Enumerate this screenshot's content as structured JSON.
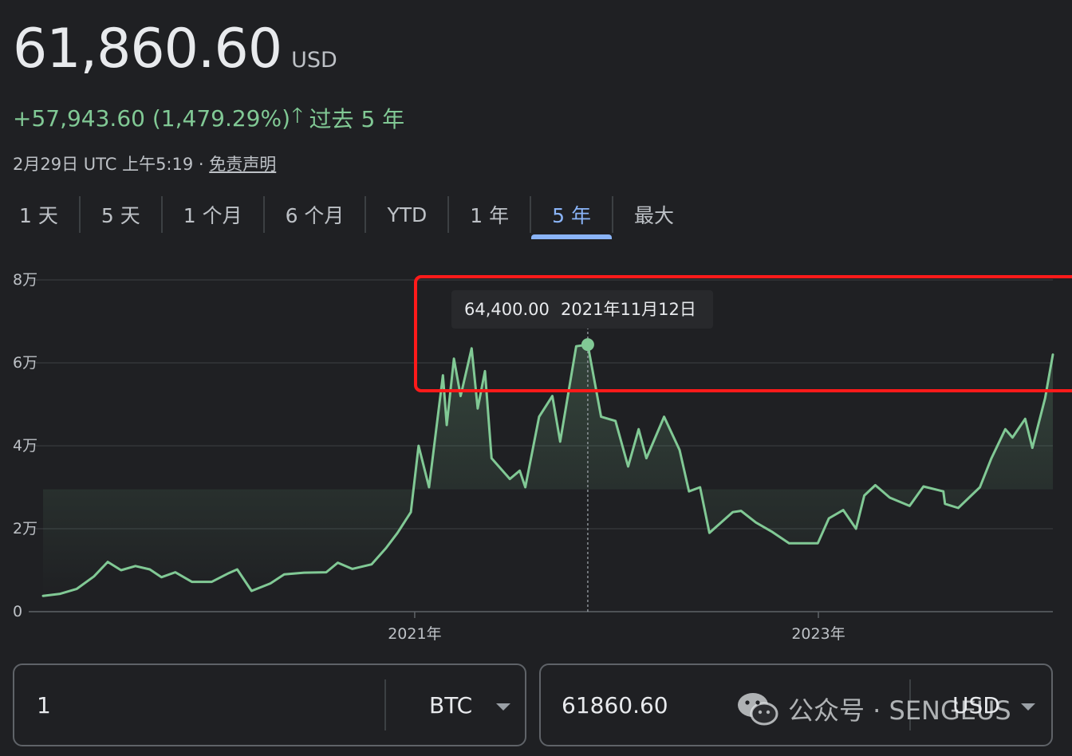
{
  "header": {
    "price": "61,860.60",
    "currency": "USD",
    "change": "+57,943.60 (1,479.29%)",
    "change_period": "过去 5 年",
    "timestamp": "2月29日 UTC 上午5:19 · ",
    "disclaimer": "免责声明"
  },
  "tabs": [
    "1 天",
    "5 天",
    "1 个月",
    "6 个月",
    "YTD",
    "1 年",
    "5 年",
    "最大"
  ],
  "active_tab_index": 6,
  "colors": {
    "line": "#81c995",
    "accent": "#8ab4f8",
    "highlight_box": "#ff1a1a"
  },
  "tooltip": {
    "value": "64,400.00",
    "date": "2021年11月12日"
  },
  "chart_data": {
    "type": "line",
    "y_tick_labels": [
      "0",
      "2万",
      "4万",
      "6万",
      "8万"
    ],
    "y_ticks": [
      0,
      20000,
      40000,
      60000,
      80000
    ],
    "ylim": [
      0,
      80000
    ],
    "x_tick_labels": [
      "2021年",
      "2023年"
    ],
    "x_ticks": [
      "2021-01-01",
      "2023-01-01"
    ],
    "xlim": [
      "2019-03-01",
      "2024-02-29"
    ],
    "grid": true,
    "series": [
      {
        "points": [
          [
            "2019-03-01",
            3800
          ],
          [
            "2019-04-01",
            4300
          ],
          [
            "2019-05-01",
            5500
          ],
          [
            "2019-06-01",
            8500
          ],
          [
            "2019-06-26",
            12000
          ],
          [
            "2019-07-20",
            10000
          ],
          [
            "2019-08-15",
            11000
          ],
          [
            "2019-09-10",
            10200
          ],
          [
            "2019-10-01",
            8300
          ],
          [
            "2019-10-26",
            9500
          ],
          [
            "2019-11-25",
            7200
          ],
          [
            "2019-12-31",
            7200
          ],
          [
            "2020-01-31",
            9300
          ],
          [
            "2020-02-15",
            10200
          ],
          [
            "2020-03-12",
            5000
          ],
          [
            "2020-04-15",
            6800
          ],
          [
            "2020-05-10",
            9000
          ],
          [
            "2020-06-15",
            9400
          ],
          [
            "2020-07-25",
            9500
          ],
          [
            "2020-08-15",
            11800
          ],
          [
            "2020-09-10",
            10300
          ],
          [
            "2020-10-15",
            11400
          ],
          [
            "2020-11-10",
            15300
          ],
          [
            "2020-12-01",
            19000
          ],
          [
            "2020-12-25",
            24000
          ],
          [
            "2021-01-08",
            40000
          ],
          [
            "2021-01-27",
            30000
          ],
          [
            "2021-02-21",
            57000
          ],
          [
            "2021-02-28",
            45000
          ],
          [
            "2021-03-13",
            61000
          ],
          [
            "2021-03-25",
            52000
          ],
          [
            "2021-04-14",
            63500
          ],
          [
            "2021-04-25",
            49000
          ],
          [
            "2021-05-08",
            58000
          ],
          [
            "2021-05-20",
            37000
          ],
          [
            "2021-06-22",
            32000
          ],
          [
            "2021-07-10",
            34000
          ],
          [
            "2021-07-20",
            30000
          ],
          [
            "2021-08-14",
            47000
          ],
          [
            "2021-09-07",
            52000
          ],
          [
            "2021-09-21",
            41000
          ],
          [
            "2021-10-20",
            64000
          ],
          [
            "2021-11-10",
            64400
          ],
          [
            "2021-12-04",
            47000
          ],
          [
            "2021-12-30",
            46000
          ],
          [
            "2022-01-22",
            35000
          ],
          [
            "2022-02-10",
            44000
          ],
          [
            "2022-02-24",
            37000
          ],
          [
            "2022-03-28",
            47000
          ],
          [
            "2022-04-25",
            39000
          ],
          [
            "2022-05-12",
            29000
          ],
          [
            "2022-06-01",
            30000
          ],
          [
            "2022-06-18",
            19000
          ],
          [
            "2022-07-30",
            24000
          ],
          [
            "2022-08-14",
            24300
          ],
          [
            "2022-09-10",
            21500
          ],
          [
            "2022-10-10",
            19200
          ],
          [
            "2022-11-09",
            16500
          ],
          [
            "2022-12-31",
            16500
          ],
          [
            "2023-01-20",
            22500
          ],
          [
            "2023-02-15",
            24500
          ],
          [
            "2023-03-10",
            20000
          ],
          [
            "2023-03-25",
            28000
          ],
          [
            "2023-04-14",
            30500
          ],
          [
            "2023-05-10",
            27500
          ],
          [
            "2023-06-15",
            25500
          ],
          [
            "2023-07-10",
            30200
          ],
          [
            "2023-08-15",
            29000
          ],
          [
            "2023-08-18",
            26000
          ],
          [
            "2023-09-11",
            25000
          ],
          [
            "2023-10-20",
            30000
          ],
          [
            "2023-11-10",
            37000
          ],
          [
            "2023-12-05",
            44000
          ],
          [
            "2023-12-18",
            42000
          ],
          [
            "2024-01-10",
            46500
          ],
          [
            "2024-01-23",
            39500
          ],
          [
            "2024-02-15",
            51500
          ],
          [
            "2024-02-29",
            62000
          ]
        ]
      }
    ]
  },
  "converter": {
    "from_amount": "1",
    "from_unit": "BTC",
    "to_amount": "61860.60",
    "to_unit": "USD"
  },
  "watermark": {
    "text": "公众号 · SENGEUS",
    "icon": "wechat-icon"
  }
}
